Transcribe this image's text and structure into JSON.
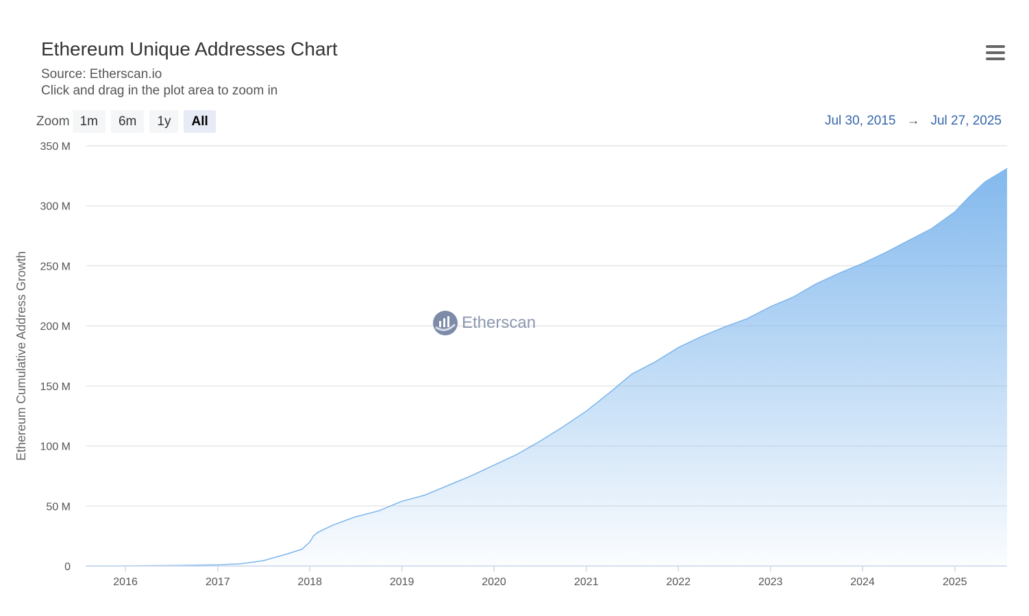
{
  "header": {
    "title": "Ethereum Unique Addresses Chart",
    "source": "Source: Etherscan.io",
    "hint": "Click and drag in the plot area to zoom in"
  },
  "zoom": {
    "label": "Zoom",
    "buttons": [
      "1m",
      "6m",
      "1y",
      "All"
    ],
    "active": "All"
  },
  "range": {
    "from": "Jul 30, 2015",
    "arrow": "→",
    "to": "Jul 27, 2025"
  },
  "watermark": {
    "text": "Etherscan"
  },
  "colors": {
    "line": "#7cb5ec",
    "area_top": "#7cb5ec",
    "grid": "#e6e6e6",
    "range_text": "#3366aa"
  },
  "icons": {
    "menu": "hamburger-menu-icon",
    "logo": "etherscan-logo-icon"
  },
  "chart_data": {
    "type": "area",
    "title": "Ethereum Unique Addresses Chart",
    "subtitle": "Source: Etherscan.io",
    "ylabel": "Ethereum Cumulative Address Growth",
    "xlabel": "",
    "ylim": [
      0,
      350000000
    ],
    "xlim": [
      "2015-07-30",
      "2025-07-27"
    ],
    "y_ticks": [
      {
        "value": 0,
        "label": "0"
      },
      {
        "value": 50000000,
        "label": "50 M"
      },
      {
        "value": 100000000,
        "label": "100 M"
      },
      {
        "value": 150000000,
        "label": "150 M"
      },
      {
        "value": 200000000,
        "label": "200 M"
      },
      {
        "value": 250000000,
        "label": "250 M"
      },
      {
        "value": 300000000,
        "label": "300 M"
      },
      {
        "value": 350000000,
        "label": "350 M"
      }
    ],
    "x_ticks": [
      {
        "value": "2016-01-01",
        "label": "2016"
      },
      {
        "value": "2017-01-01",
        "label": "2017"
      },
      {
        "value": "2018-01-01",
        "label": "2018"
      },
      {
        "value": "2019-01-01",
        "label": "2019"
      },
      {
        "value": "2020-01-01",
        "label": "2020"
      },
      {
        "value": "2021-01-01",
        "label": "2021"
      },
      {
        "value": "2022-01-01",
        "label": "2022"
      },
      {
        "value": "2023-01-01",
        "label": "2023"
      },
      {
        "value": "2024-01-01",
        "label": "2024"
      },
      {
        "value": "2025-01-01",
        "label": "2025"
      }
    ],
    "grid": true,
    "legend": "none",
    "series": [
      {
        "x": [
          "2015-07-30",
          "2016-01-01",
          "2016-07-01",
          "2017-01-01",
          "2017-04-01",
          "2017-07-01",
          "2017-10-01",
          "2017-12-01",
          "2018-01-01",
          "2018-01-15",
          "2018-02-01",
          "2018-04-01",
          "2018-07-01",
          "2018-10-01",
          "2019-01-01",
          "2019-04-01",
          "2019-07-01",
          "2019-10-01",
          "2020-01-01",
          "2020-04-01",
          "2020-07-01",
          "2020-10-01",
          "2021-01-01",
          "2021-04-01",
          "2021-07-01",
          "2021-10-01",
          "2022-01-01",
          "2022-04-01",
          "2022-07-01",
          "2022-10-01",
          "2023-01-01",
          "2023-04-01",
          "2023-07-01",
          "2023-10-01",
          "2024-01-01",
          "2024-04-01",
          "2024-07-01",
          "2024-10-01",
          "2025-01-01",
          "2025-03-01",
          "2025-05-01",
          "2025-07-27"
        ],
        "values": [
          0,
          100000,
          400000,
          1000000,
          1800000,
          4500000,
          10000000,
          14000000,
          20000000,
          25000000,
          28000000,
          34000000,
          41000000,
          46000000,
          54000000,
          59000000,
          67000000,
          75000000,
          84000000,
          93000000,
          104000000,
          116000000,
          129000000,
          144000000,
          160000000,
          170000000,
          182000000,
          191000000,
          199000000,
          206000000,
          216000000,
          224000000,
          235000000,
          244000000,
          252000000,
          261000000,
          271000000,
          281000000,
          295000000,
          308000000,
          320000000,
          331000000
        ]
      }
    ]
  }
}
